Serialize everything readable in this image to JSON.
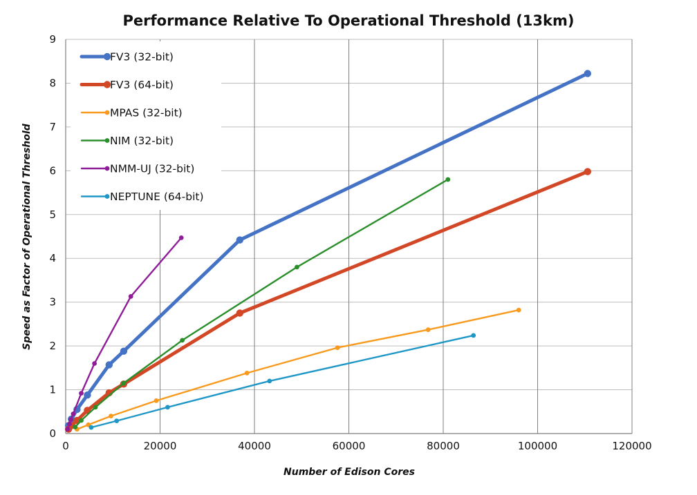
{
  "chart_data": {
    "type": "line",
    "title": "Performance Relative To Operational Threshold (13km)",
    "xlabel": "Number of Edison Cores",
    "ylabel": "Speed as Factor of Operational Threshold",
    "xlim": [
      0,
      120000
    ],
    "ylim": [
      0,
      9
    ],
    "x_ticks": [
      "0",
      "20000",
      "40000",
      "60000",
      "80000",
      "100000",
      "120000"
    ],
    "y_ticks": [
      "0",
      "1",
      "2",
      "3",
      "4",
      "5",
      "6",
      "7",
      "8",
      "9"
    ],
    "grid": "vertical and horizontal major gridlines",
    "legend_position": "top-left inside plot",
    "series": [
      {
        "name": "FV3 (32-bit)",
        "color": "#4472C4",
        "weight": "thick",
        "points": [
          [
            600,
            0.18
          ],
          [
            1200,
            0.33
          ],
          [
            2400,
            0.55
          ],
          [
            4600,
            0.88
          ],
          [
            9200,
            1.57
          ],
          [
            12300,
            1.88
          ],
          [
            36900,
            4.42
          ],
          [
            110600,
            8.22
          ]
        ]
      },
      {
        "name": "FV3 (64-bit)",
        "color": "#D24726",
        "weight": "thick",
        "points": [
          [
            600,
            0.1
          ],
          [
            1200,
            0.18
          ],
          [
            2400,
            0.3
          ],
          [
            4600,
            0.53
          ],
          [
            9200,
            0.93
          ],
          [
            12300,
            1.13
          ],
          [
            36900,
            2.75
          ],
          [
            110600,
            5.98
          ]
        ]
      },
      {
        "name": "MPAS (32-bit)",
        "color": "#F79A1E",
        "weight": "thin",
        "points": [
          [
            2400,
            0.1
          ],
          [
            4800,
            0.2
          ],
          [
            9600,
            0.4
          ],
          [
            19200,
            0.75
          ],
          [
            38400,
            1.38
          ],
          [
            57600,
            1.96
          ],
          [
            76800,
            2.37
          ],
          [
            96000,
            2.82
          ]
        ]
      },
      {
        "name": "NIM (32-bit)",
        "color": "#2A8E2A",
        "weight": "thin",
        "points": [
          [
            2000,
            0.15
          ],
          [
            3300,
            0.3
          ],
          [
            6300,
            0.6
          ],
          [
            12300,
            1.15
          ],
          [
            24700,
            2.13
          ],
          [
            49000,
            3.8
          ],
          [
            81000,
            5.8
          ]
        ]
      },
      {
        "name": "NMM-UJ (32-bit)",
        "color": "#8E1D97",
        "weight": "thin",
        "points": [
          [
            400,
            0.1
          ],
          [
            800,
            0.22
          ],
          [
            1100,
            0.32
          ],
          [
            1600,
            0.45
          ],
          [
            3300,
            0.92
          ],
          [
            6100,
            1.6
          ],
          [
            13800,
            3.13
          ],
          [
            24500,
            4.47
          ]
        ]
      },
      {
        "name": "NEPTUNE (64-bit)",
        "color": "#1F97C6",
        "weight": "thin",
        "points": [
          [
            5400,
            0.14
          ],
          [
            10800,
            0.29
          ],
          [
            21600,
            0.6
          ],
          [
            43200,
            1.2
          ],
          [
            86400,
            2.24
          ]
        ]
      }
    ]
  }
}
